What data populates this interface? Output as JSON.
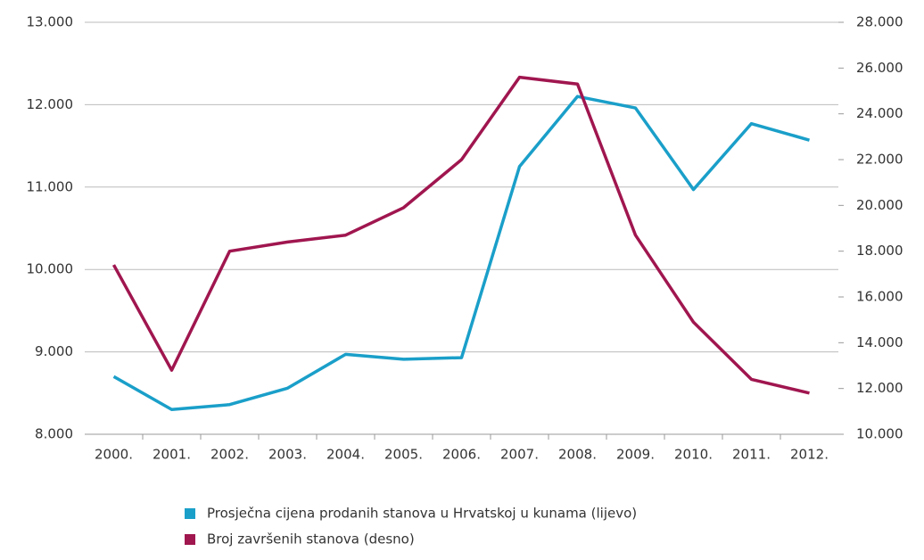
{
  "chart_data": {
    "type": "line",
    "categories": [
      "2000.",
      "2001.",
      "2002.",
      "2003.",
      "2004.",
      "2005.",
      "2006.",
      "2007.",
      "2008.",
      "2009.",
      "2010.",
      "2011.",
      "2012."
    ],
    "series": [
      {
        "name": "Prosječna cijena prodanih stanova u Hrvatskoj u kunama (lijevo)",
        "color": "#1a9fc9",
        "values": [
          8700,
          8300,
          8360,
          8560,
          8970,
          8910,
          8930,
          11250,
          12100,
          11960,
          10970,
          11770,
          11570
        ]
      },
      {
        "name": "Broj završenih stanova (desno)",
        "color": "#a0164f",
        "axis": "y2",
        "values": [
          17400,
          12800,
          18000,
          18400,
          18700,
          19900,
          22000,
          25600,
          25300,
          18700,
          14900,
          12400,
          11800
        ]
      }
    ],
    "ylim": [
      8000,
      13000
    ],
    "yticks": [
      {
        "value": 8000,
        "label": "8.000"
      },
      {
        "value": 9000,
        "label": "9.000"
      },
      {
        "value": 10000,
        "label": "10.000"
      },
      {
        "value": 11000,
        "label": "11.000"
      },
      {
        "value": 12000,
        "label": "12.000"
      },
      {
        "value": 13000,
        "label": "13.000"
      }
    ],
    "y2lim": [
      10000,
      28000
    ],
    "y2ticks": [
      {
        "value": 10000,
        "label": "10.000"
      },
      {
        "value": 12000,
        "label": "12.000"
      },
      {
        "value": 14000,
        "label": "14.000"
      },
      {
        "value": 16000,
        "label": "16.000"
      },
      {
        "value": 18000,
        "label": "18.000"
      },
      {
        "value": 20000,
        "label": "20.000"
      },
      {
        "value": 22000,
        "label": "22.000"
      },
      {
        "value": 24000,
        "label": "24.000"
      },
      {
        "value": 26000,
        "label": "26.000"
      },
      {
        "value": 28000,
        "label": "28.000"
      }
    ],
    "grid": true
  }
}
